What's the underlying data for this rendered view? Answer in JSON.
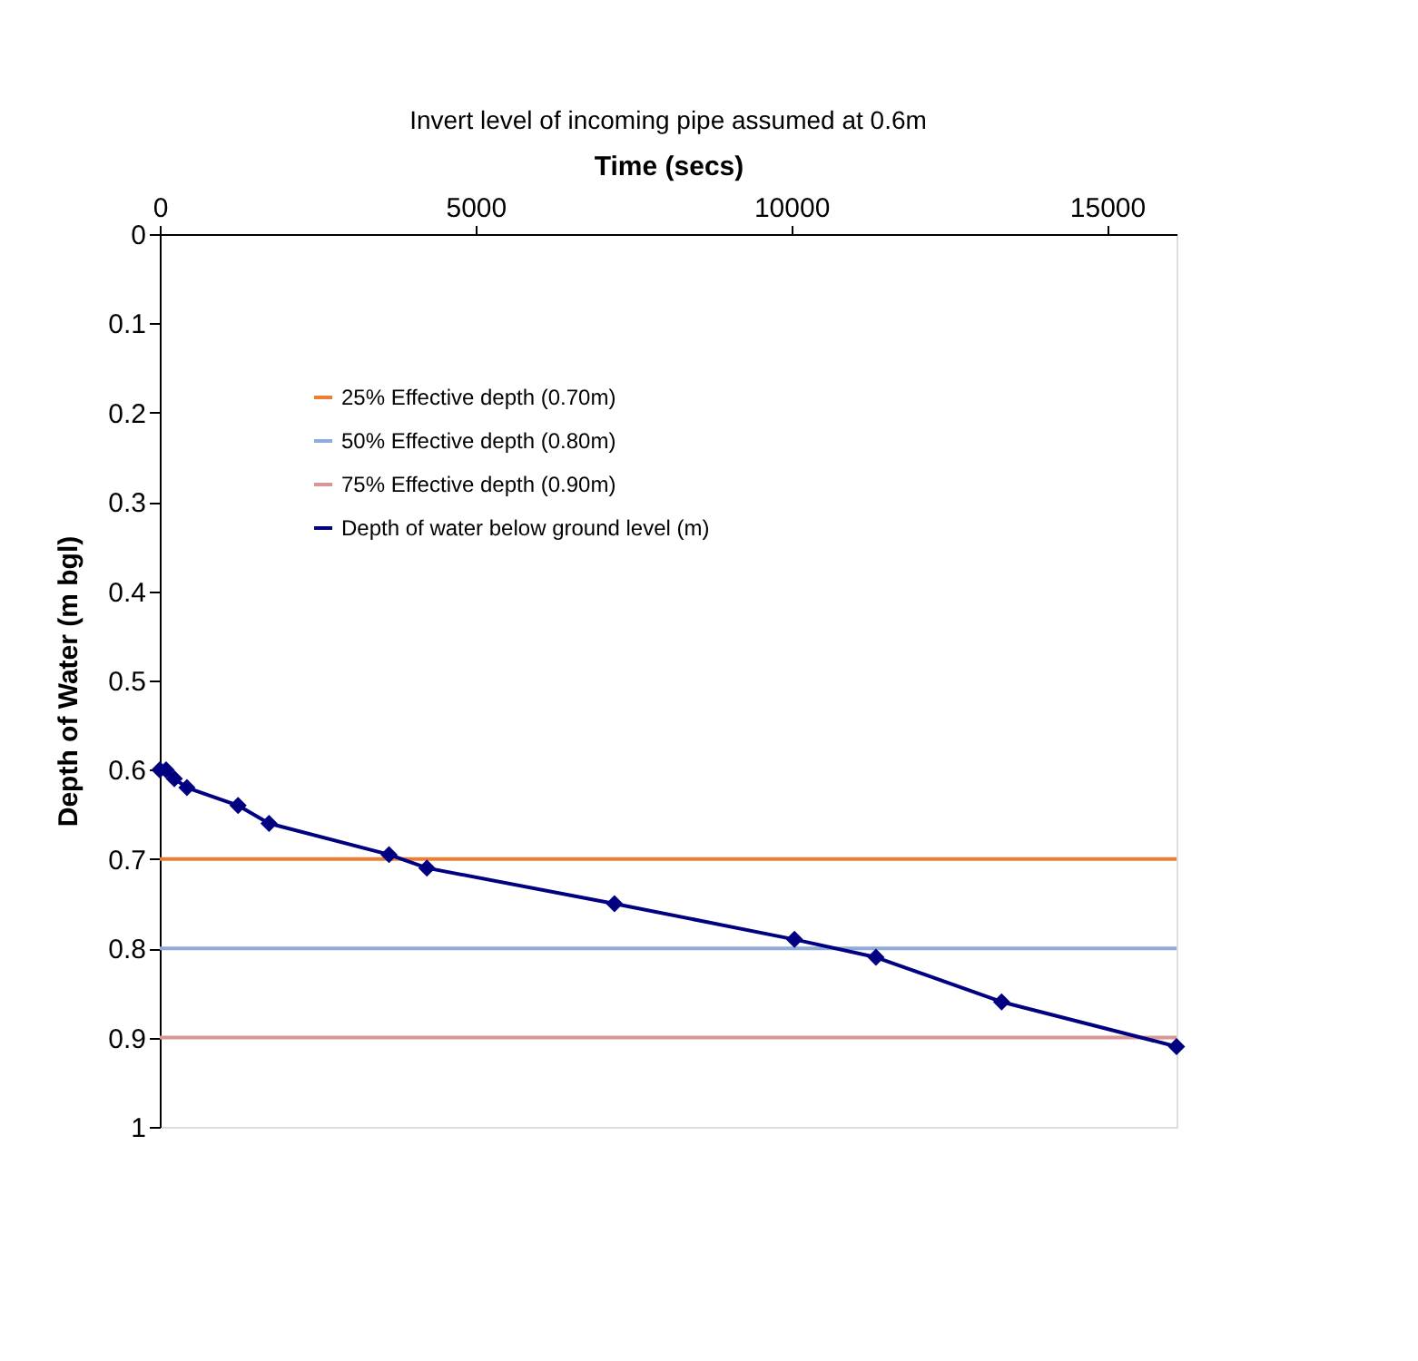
{
  "chart_data": {
    "type": "line",
    "title": "Invert level of incoming pipe assumed at 0.6m",
    "xlabel": "Time (secs)",
    "ylabel": "Depth of Water (m bgl)",
    "xlim": [
      0,
      16100
    ],
    "xticks": [
      0,
      5000,
      10000,
      15000
    ],
    "ylim": [
      1,
      0
    ],
    "yticks": [
      0,
      0.1,
      0.2,
      0.3,
      0.4,
      0.5,
      0.6,
      0.7,
      0.8,
      0.9,
      1
    ],
    "grid": false,
    "legend": "top left",
    "series": [
      {
        "name": "25% Effective depth (0.70m)",
        "color": "#ed7d31",
        "x": [
          0,
          16100
        ],
        "values": [
          0.7,
          0.7
        ],
        "marker": "none"
      },
      {
        "name": "50% Effective depth (0.80m)",
        "color": "#8faadc",
        "x": [
          0,
          16100
        ],
        "values": [
          0.8,
          0.8
        ],
        "marker": "none"
      },
      {
        "name": "75% Effective depth (0.90m)",
        "color": "#d99694",
        "x": [
          0,
          16100
        ],
        "values": [
          0.9,
          0.9
        ],
        "marker": "none"
      },
      {
        "name": "Depth of water below ground level (m)",
        "color": "#000080",
        "x": [
          0,
          100,
          230,
          430,
          1240,
          1730,
          3630,
          4230,
          7200,
          10050,
          11340,
          13330,
          16100
        ],
        "values": [
          0.6,
          0.6,
          0.61,
          0.62,
          0.64,
          0.66,
          0.695,
          0.71,
          0.75,
          0.79,
          0.81,
          0.86,
          0.91
        ],
        "marker": "diamond"
      }
    ]
  }
}
